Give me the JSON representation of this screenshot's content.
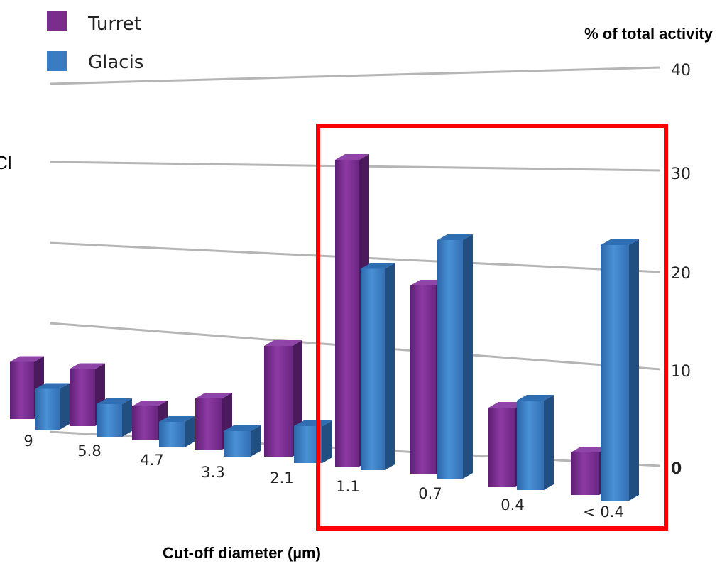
{
  "chart_data": {
    "type": "bar",
    "ylabel": "% of total activity",
    "xlabel": "Cut-off diameter (µm)",
    "ylim": [
      0,
      40
    ],
    "yticks": [
      "0",
      "10",
      "20",
      "30",
      "40"
    ],
    "categories": [
      "9",
      "5.8",
      "4.7",
      "3.3",
      "2.1",
      "1.1",
      "0.7",
      "0.4",
      "< 0.4"
    ],
    "series": [
      {
        "name": "Turret",
        "color": "#7b2d8e",
        "values": [
          7,
          7,
          4,
          6,
          12,
          32,
          19,
          8,
          4
        ]
      },
      {
        "name": "Glacis",
        "color": "#3a7cc2",
        "values": [
          5,
          4,
          3,
          3,
          4,
          21,
          24,
          9,
          24
        ]
      }
    ],
    "grid": true,
    "legend_position": "top-left",
    "highlight": {
      "categories": [
        "1.1",
        "0.7",
        "0.4",
        "< 0.4"
      ],
      "color": "#ff0000"
    },
    "cut_text": "Cl"
  }
}
